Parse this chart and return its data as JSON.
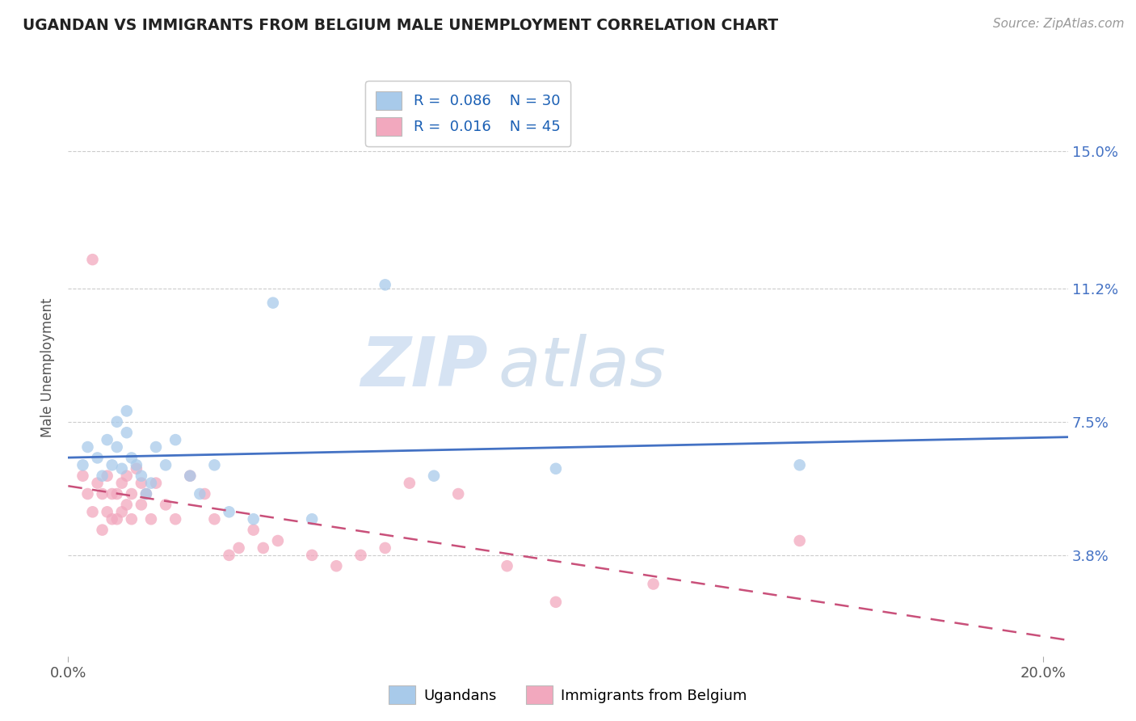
{
  "title": "UGANDAN VS IMMIGRANTS FROM BELGIUM MALE UNEMPLOYMENT CORRELATION CHART",
  "source": "Source: ZipAtlas.com",
  "ylabel": "Male Unemployment",
  "ytick_labels": [
    "15.0%",
    "11.2%",
    "7.5%",
    "3.8%"
  ],
  "ytick_values": [
    0.15,
    0.112,
    0.075,
    0.038
  ],
  "xtick_labels": [
    "0.0%",
    "20.0%"
  ],
  "xtick_values": [
    0.0,
    0.2
  ],
  "xmin": 0.0,
  "xmax": 0.205,
  "ymin": 0.01,
  "ymax": 0.17,
  "color_ugandan": "#A8CAEA",
  "color_belgium": "#F2A8BE",
  "color_ugandan_line": "#4472C4",
  "color_belgium_line": "#C9507A",
  "watermark_zip": "ZIP",
  "watermark_atlas": "atlas",
  "ugandan_x": [
    0.003,
    0.004,
    0.006,
    0.007,
    0.008,
    0.009,
    0.01,
    0.01,
    0.011,
    0.012,
    0.012,
    0.013,
    0.014,
    0.015,
    0.016,
    0.017,
    0.018,
    0.02,
    0.022,
    0.025,
    0.027,
    0.03,
    0.033,
    0.038,
    0.042,
    0.05,
    0.065,
    0.075,
    0.1,
    0.15
  ],
  "ugandan_y": [
    0.063,
    0.068,
    0.065,
    0.06,
    0.07,
    0.063,
    0.068,
    0.075,
    0.062,
    0.072,
    0.078,
    0.065,
    0.063,
    0.06,
    0.055,
    0.058,
    0.068,
    0.063,
    0.07,
    0.06,
    0.055,
    0.063,
    0.05,
    0.048,
    0.108,
    0.048,
    0.113,
    0.06,
    0.062,
    0.063
  ],
  "belgium_x": [
    0.003,
    0.004,
    0.005,
    0.005,
    0.006,
    0.007,
    0.007,
    0.008,
    0.008,
    0.009,
    0.009,
    0.01,
    0.01,
    0.011,
    0.011,
    0.012,
    0.012,
    0.013,
    0.013,
    0.014,
    0.015,
    0.015,
    0.016,
    0.017,
    0.018,
    0.02,
    0.022,
    0.025,
    0.028,
    0.03,
    0.033,
    0.035,
    0.038,
    0.04,
    0.043,
    0.05,
    0.055,
    0.06,
    0.065,
    0.07,
    0.08,
    0.09,
    0.1,
    0.12,
    0.15
  ],
  "belgium_y": [
    0.06,
    0.055,
    0.12,
    0.05,
    0.058,
    0.055,
    0.045,
    0.06,
    0.05,
    0.055,
    0.048,
    0.055,
    0.048,
    0.058,
    0.05,
    0.06,
    0.052,
    0.055,
    0.048,
    0.062,
    0.058,
    0.052,
    0.055,
    0.048,
    0.058,
    0.052,
    0.048,
    0.06,
    0.055,
    0.048,
    0.038,
    0.04,
    0.045,
    0.04,
    0.042,
    0.038,
    0.035,
    0.038,
    0.04,
    0.058,
    0.055,
    0.035,
    0.025,
    0.03,
    0.042
  ]
}
